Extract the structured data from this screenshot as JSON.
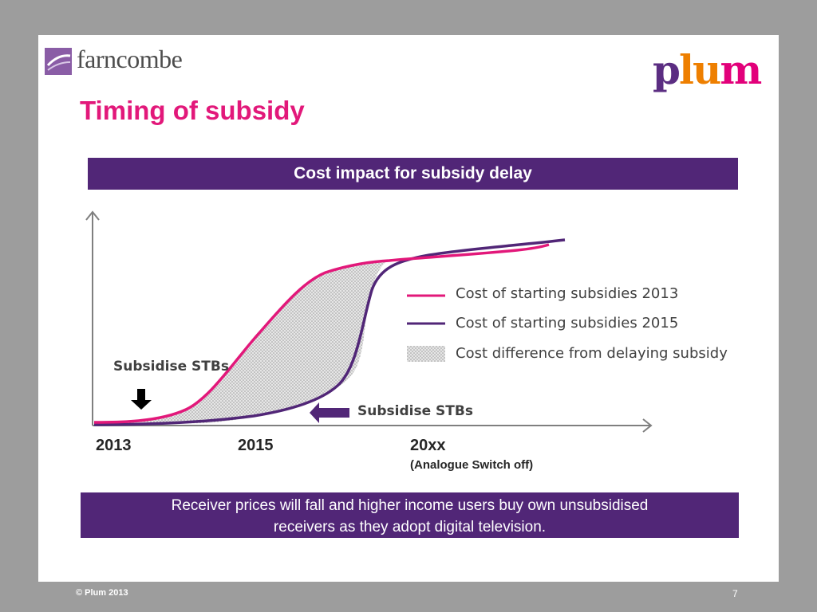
{
  "brand_left": "farncombe",
  "brand_right": [
    "p",
    "l",
    "u",
    "m"
  ],
  "title": "Timing of subsidy",
  "banner": "Cost impact for subsidy delay",
  "legend": [
    {
      "label": "Cost of starting subsidies 2013",
      "color": "#e2187a"
    },
    {
      "label": "Cost of starting subsidies 2015",
      "color": "#512677"
    },
    {
      "label": "Cost difference from delaying subsidy",
      "color": "#cccccc"
    }
  ],
  "x_labels": [
    "2013",
    "2015",
    "20xx"
  ],
  "x_label_note": "(Analogue Switch off)",
  "annotations": {
    "subsidise_2013": "Subsidise STBs",
    "subsidise_2015": "Subsidise STBs"
  },
  "note_line1": "Receiver prices will fall and higher income users buy own unsubsidised",
  "note_line2": "receivers as they adopt digital television.",
  "footer_left": "© Plum 2013",
  "footer_right": "7",
  "colors": {
    "accent_pink": "#e2187a",
    "accent_purple": "#512677",
    "orange": "#ee7f00"
  }
}
